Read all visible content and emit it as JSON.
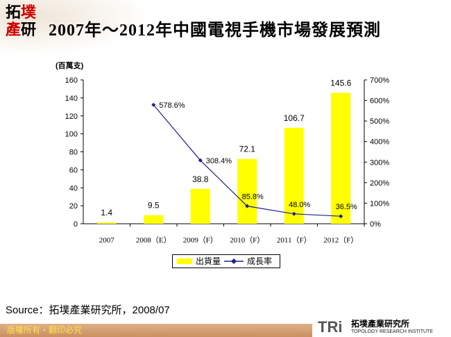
{
  "title": "2007年～2012年中國電視手機市場發展預測",
  "logo_text": "拓墣產研",
  "source": "Source：拓墣產業研究所，2008/07",
  "footer": "版權所有・翻印必究",
  "brand": {
    "abbr": "TRi",
    "name": "拓墣產業研究所",
    "english": "TOPOLOGY RESEARCH INSTITUTE"
  },
  "colors": {
    "bar": "#ffff00",
    "line": "#1f1f8f",
    "footer": "#d49c70",
    "footer_text": "#ffe24a"
  },
  "chart_data": {
    "type": "bar+line",
    "unit_label": "(百萬支)",
    "categories": [
      "2007",
      "2008（E）",
      "2009（F）",
      "2010（F）",
      "2011（F）",
      "2012（F）"
    ],
    "series": [
      {
        "name": "出貨量",
        "type": "bar",
        "axis": "left",
        "values": [
          1.4,
          9.5,
          38.8,
          72.1,
          106.7,
          145.6
        ],
        "labels": [
          "1.4",
          "9.5",
          "38.8",
          "72.1",
          "106.7",
          "145.6"
        ]
      },
      {
        "name": "成長率",
        "type": "line",
        "axis": "right",
        "values": [
          null,
          578.6,
          308.4,
          85.8,
          48.0,
          36.5
        ],
        "labels": [
          "",
          "578.6%",
          "308.4%",
          "85.8%",
          "48.0%",
          "36.5%"
        ]
      }
    ],
    "y_left": {
      "range": [
        0,
        160
      ],
      "ticks": [
        "0",
        "20",
        "40",
        "60",
        "80",
        "100",
        "120",
        "140",
        "160"
      ]
    },
    "y_right": {
      "range": [
        0,
        700
      ],
      "ticks": [
        "0%",
        "100%",
        "200%",
        "300%",
        "400%",
        "500%",
        "600%",
        "700%"
      ]
    },
    "legend_position": "bottom",
    "grid": false
  }
}
